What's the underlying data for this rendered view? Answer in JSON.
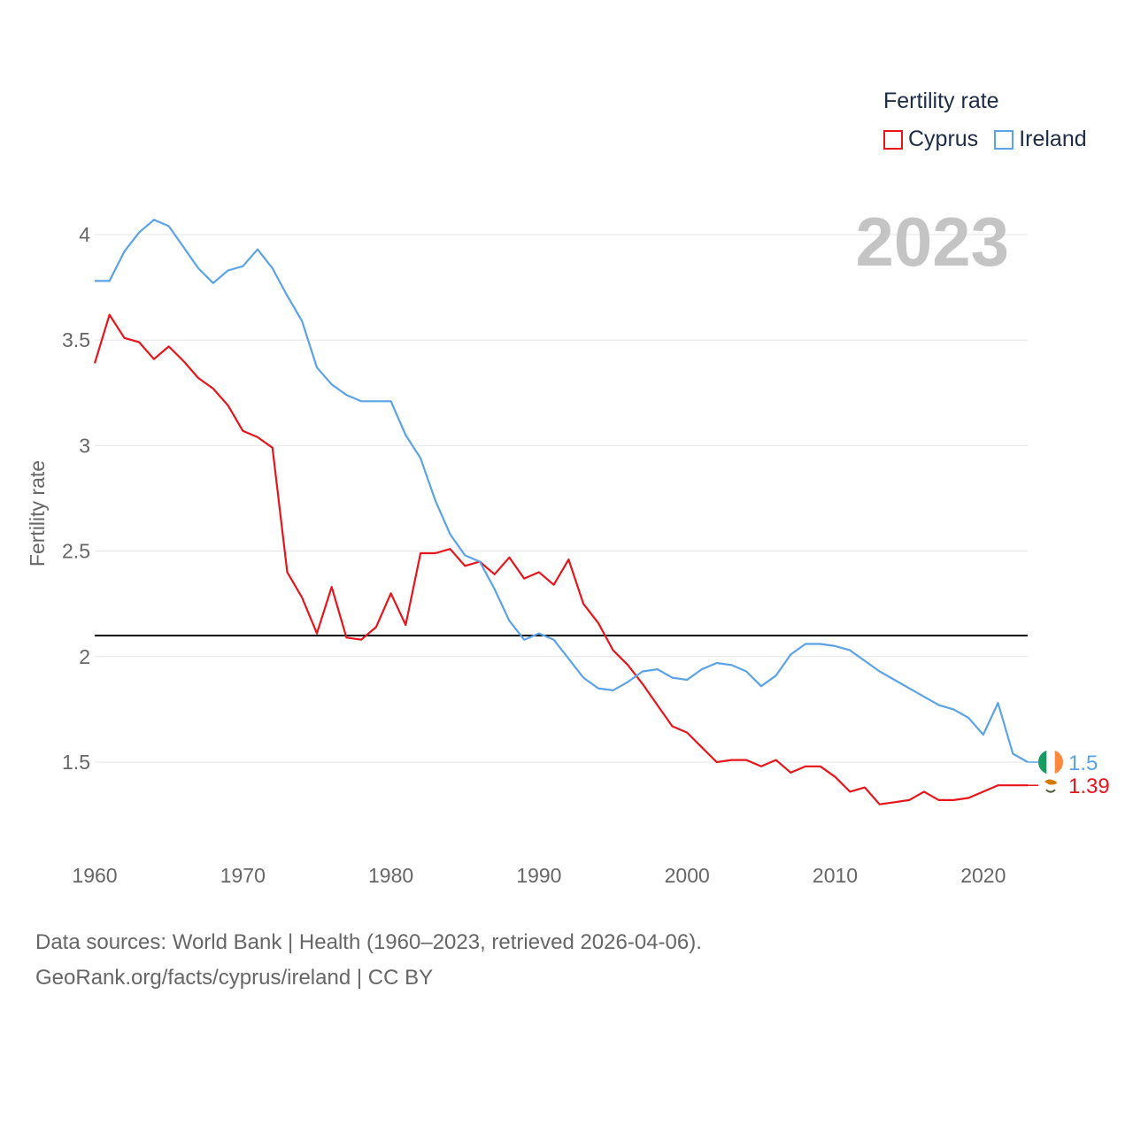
{
  "legend": {
    "title": "Fertility rate"
  },
  "current_year": "2023",
  "source": {
    "line1": "Data sources: World Bank | Health (1960–2023, retrieved 2026-04-06).",
    "line2": "GeoRank.org/facts/cyprus/ireland | CC BY"
  },
  "chart_data": {
    "type": "line",
    "title": "Fertility rate",
    "ylabel": "Fertility rate",
    "xlabel": "",
    "xlim": [
      1960,
      2023
    ],
    "ylim": [
      1.1,
      4.1
    ],
    "x_ticks": [
      1960,
      1970,
      1980,
      1990,
      2000,
      2010,
      2020
    ],
    "y_ticks": [
      1.5,
      2,
      2.5,
      3,
      3.5,
      4
    ],
    "reference_line": {
      "value": 2.1,
      "color": "#000000"
    },
    "x": [
      1960,
      1961,
      1962,
      1963,
      1964,
      1965,
      1966,
      1967,
      1968,
      1969,
      1970,
      1971,
      1972,
      1973,
      1974,
      1975,
      1976,
      1977,
      1978,
      1979,
      1980,
      1981,
      1982,
      1983,
      1984,
      1985,
      1986,
      1987,
      1988,
      1989,
      1990,
      1991,
      1992,
      1993,
      1994,
      1995,
      1996,
      1997,
      1998,
      1999,
      2000,
      2001,
      2002,
      2003,
      2004,
      2005,
      2006,
      2007,
      2008,
      2009,
      2010,
      2011,
      2012,
      2013,
      2014,
      2015,
      2016,
      2017,
      2018,
      2019,
      2020,
      2021,
      2022,
      2023
    ],
    "series": [
      {
        "name": "Cyprus",
        "color": "#e8141b",
        "end_label": "1.39",
        "flag": "cyprus-flag",
        "values": [
          3.39,
          3.62,
          3.51,
          3.49,
          3.41,
          3.47,
          3.4,
          3.32,
          3.27,
          3.19,
          3.07,
          3.04,
          2.99,
          2.4,
          2.28,
          2.11,
          2.33,
          2.09,
          2.08,
          2.14,
          2.3,
          2.15,
          2.49,
          2.49,
          2.51,
          2.43,
          2.45,
          2.39,
          2.47,
          2.37,
          2.4,
          2.34,
          2.46,
          2.25,
          2.16,
          2.03,
          1.96,
          1.87,
          1.77,
          1.67,
          1.64,
          1.57,
          1.5,
          1.51,
          1.51,
          1.48,
          1.51,
          1.45,
          1.48,
          1.48,
          1.43,
          1.36,
          1.38,
          1.3,
          1.31,
          1.32,
          1.36,
          1.32,
          1.32,
          1.33,
          1.36,
          1.39,
          1.39,
          1.39
        ]
      },
      {
        "name": "Ireland",
        "color": "#5ba3e6",
        "end_label": "1.5",
        "flag": "ireland-flag",
        "values": [
          3.78,
          3.78,
          3.92,
          4.01,
          4.07,
          4.04,
          3.94,
          3.84,
          3.77,
          3.83,
          3.85,
          3.93,
          3.84,
          3.71,
          3.59,
          3.37,
          3.29,
          3.24,
          3.21,
          3.21,
          3.21,
          3.05,
          2.94,
          2.74,
          2.58,
          2.48,
          2.45,
          2.32,
          2.17,
          2.08,
          2.11,
          2.08,
          1.99,
          1.9,
          1.85,
          1.84,
          1.88,
          1.93,
          1.94,
          1.9,
          1.89,
          1.94,
          1.97,
          1.96,
          1.93,
          1.86,
          1.91,
          2.01,
          2.06,
          2.06,
          2.05,
          2.03,
          1.98,
          1.93,
          1.89,
          1.85,
          1.81,
          1.77,
          1.75,
          1.71,
          1.63,
          1.78,
          1.54,
          1.5
        ]
      }
    ]
  }
}
